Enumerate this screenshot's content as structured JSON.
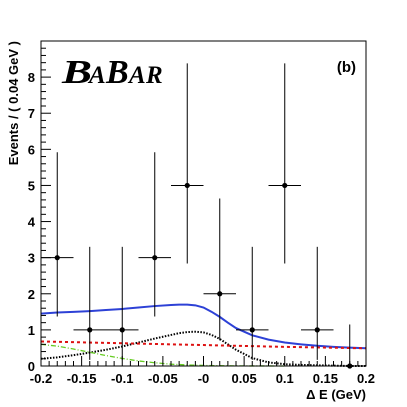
{
  "chart_data": {
    "type": "scatter",
    "xlabel": "Δ E (GeV)",
    "ylabel": "Events / ( 0.04 GeV )",
    "panel_label": "(b)",
    "logo": "BABAR",
    "xlim": [
      -0.2,
      0.2
    ],
    "ylim": [
      0,
      9
    ],
    "x_ticks": [
      -0.2,
      -0.15,
      -0.1,
      -0.05,
      0,
      0.05,
      0.1,
      0.15,
      0.2
    ],
    "x_tick_labels": [
      "-0.2",
      "-0.15",
      "-0.1",
      "-0.05",
      "-0",
      "0.05",
      "0.1",
      "0.15",
      "0.2"
    ],
    "y_ticks": [
      0,
      1,
      2,
      3,
      4,
      5,
      6,
      7,
      8
    ],
    "y_tick_labels": [
      "0",
      "1",
      "2",
      "3",
      "4",
      "5",
      "6",
      "7",
      "8"
    ],
    "grid": false,
    "data_points": [
      {
        "x": -0.18,
        "y": 3,
        "yerr_low": 1.63,
        "yerr_high": 2.92,
        "xerr": 0.02
      },
      {
        "x": -0.14,
        "y": 1,
        "yerr_low": 0.83,
        "yerr_high": 2.3,
        "xerr": 0.02
      },
      {
        "x": -0.1,
        "y": 1,
        "yerr_low": 0.83,
        "yerr_high": 2.3,
        "xerr": 0.02
      },
      {
        "x": -0.06,
        "y": 3,
        "yerr_low": 1.63,
        "yerr_high": 2.92,
        "xerr": 0.02
      },
      {
        "x": -0.02,
        "y": 5,
        "yerr_low": 2.16,
        "yerr_high": 3.38,
        "xerr": 0.02
      },
      {
        "x": 0.02,
        "y": 2,
        "yerr_low": 1.29,
        "yerr_high": 2.64,
        "xerr": 0.02
      },
      {
        "x": 0.06,
        "y": 1,
        "yerr_low": 0.83,
        "yerr_high": 2.3,
        "xerr": 0.02
      },
      {
        "x": 0.1,
        "y": 5,
        "yerr_low": 2.16,
        "yerr_high": 3.38,
        "xerr": 0.02
      },
      {
        "x": 0.14,
        "y": 1,
        "yerr_low": 0.83,
        "yerr_high": 2.3,
        "xerr": 0.02
      },
      {
        "x": 0.18,
        "y": 0,
        "yerr_low": 0,
        "yerr_high": 1.15,
        "xerr": 0.02
      }
    ],
    "curves": [
      {
        "style": "solid",
        "color": "#2d41d6",
        "x": [
          -0.2,
          -0.18,
          -0.16,
          -0.14,
          -0.12,
          -0.1,
          -0.08,
          -0.06,
          -0.04,
          -0.03,
          -0.02,
          -0.01,
          0,
          0.01,
          0.02,
          0.03,
          0.04,
          0.06,
          0.08,
          0.1,
          0.12,
          0.14,
          0.16,
          0.18,
          0.2
        ],
        "y": [
          1.45,
          1.48,
          1.5,
          1.52,
          1.55,
          1.58,
          1.62,
          1.66,
          1.69,
          1.7,
          1.7,
          1.68,
          1.62,
          1.5,
          1.36,
          1.2,
          1.05,
          0.85,
          0.73,
          0.65,
          0.6,
          0.56,
          0.53,
          0.51,
          0.49
        ]
      },
      {
        "style": "dotted",
        "color": "#000000",
        "x": [
          -0.2,
          -0.18,
          -0.16,
          -0.14,
          -0.12,
          -0.1,
          -0.08,
          -0.06,
          -0.04,
          -0.03,
          -0.02,
          -0.01,
          0,
          0.01,
          0.02,
          0.03,
          0.04,
          0.06,
          0.08,
          0.1,
          0.12,
          0.14,
          0.16,
          0.18,
          0.2
        ],
        "y": [
          0.2,
          0.24,
          0.3,
          0.37,
          0.45,
          0.54,
          0.65,
          0.76,
          0.86,
          0.91,
          0.94,
          0.95,
          0.93,
          0.86,
          0.75,
          0.6,
          0.45,
          0.22,
          0.1,
          0.05,
          0.03,
          0.02,
          0.01,
          0.0,
          0.0
        ]
      },
      {
        "style": "dashed",
        "color": "#dd1111",
        "x": [
          -0.2,
          -0.1,
          0,
          0.1,
          0.2
        ],
        "y": [
          0.68,
          0.63,
          0.58,
          0.53,
          0.49
        ]
      },
      {
        "style": "dash-dot",
        "color": "#66cc22",
        "x": [
          -0.2,
          -0.18,
          -0.16,
          -0.14,
          -0.12,
          -0.1,
          -0.08,
          -0.06,
          -0.04,
          -0.02,
          0,
          0.02,
          0.04,
          0.06,
          0.08,
          0.1
        ],
        "y": [
          0.6,
          0.55,
          0.47,
          0.38,
          0.29,
          0.21,
          0.14,
          0.09,
          0.05,
          0.03,
          0.015,
          0.008,
          0.004,
          0.002,
          0.001,
          0.0
        ]
      }
    ]
  }
}
